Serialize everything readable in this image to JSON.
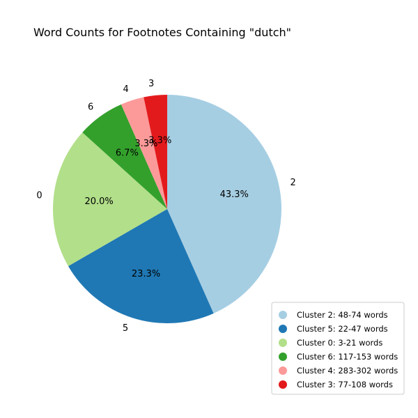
{
  "chart_data": {
    "type": "pie",
    "title": "Word Counts for Footnotes Containing \"dutch\"",
    "start_angle_deg": 90,
    "direction": "clockwise",
    "slices": [
      {
        "label": "2",
        "value": 43.3,
        "pct_label": "43.3%",
        "color": "#a6cee3"
      },
      {
        "label": "5",
        "value": 23.3,
        "pct_label": "23.3%",
        "color": "#1f78b4"
      },
      {
        "label": "0",
        "value": 20.0,
        "pct_label": "20.0%",
        "color": "#b2df8a"
      },
      {
        "label": "6",
        "value": 6.7,
        "pct_label": "6.7%",
        "color": "#33a02c"
      },
      {
        "label": "4",
        "value": 3.3,
        "pct_label": "3.3%",
        "color": "#fb9a99"
      },
      {
        "label": "3",
        "value": 3.3,
        "pct_label": "3.3%",
        "color": "#e31a1c"
      }
    ],
    "legend": {
      "position": "bottom-right",
      "entries": [
        {
          "text": "Cluster 2: 48-74 words",
          "color": "#a6cee3"
        },
        {
          "text": "Cluster 5: 22-47 words",
          "color": "#1f78b4"
        },
        {
          "text": "Cluster 0: 3-21 words",
          "color": "#b2df8a"
        },
        {
          "text": "Cluster 6: 117-153 words",
          "color": "#33a02c"
        },
        {
          "text": "Cluster 4: 283-302 words",
          "color": "#fb9a99"
        },
        {
          "text": "Cluster 3: 77-108 words",
          "color": "#e31a1c"
        }
      ]
    }
  }
}
